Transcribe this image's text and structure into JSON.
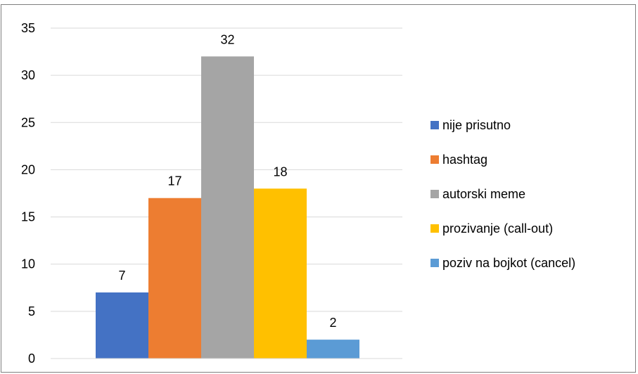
{
  "chart_data": {
    "type": "bar",
    "categories": [
      "nije prisutno",
      "hashtag",
      "autorski meme",
      "prozivanje (call-out)",
      "poziv na bojkot (cancel)"
    ],
    "values": [
      7,
      17,
      32,
      18,
      2
    ],
    "colors": [
      "#4472c4",
      "#ed7d31",
      "#a5a5a5",
      "#ffc000",
      "#5b9bd5"
    ],
    "ylim": [
      0,
      35
    ],
    "yticks": [
      0,
      5,
      10,
      15,
      20,
      25,
      30,
      35
    ],
    "grid": true,
    "legend_position": "right",
    "title": "",
    "xlabel": "",
    "ylabel": ""
  }
}
